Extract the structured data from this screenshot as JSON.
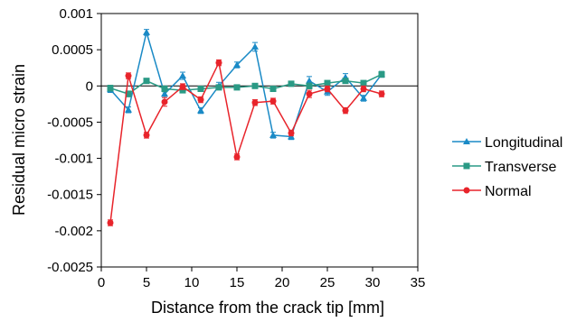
{
  "chart_data": {
    "type": "line",
    "title": "",
    "xlabel": "Distance from the crack tip [mm]",
    "ylabel": "Residual micro strain",
    "xlim": [
      0,
      35
    ],
    "ylim": [
      -0.0025,
      0.001
    ],
    "x_ticks": [
      0,
      5,
      10,
      15,
      20,
      25,
      30,
      35
    ],
    "x_tick_labels": [
      "0",
      "5",
      "10",
      "15",
      "20",
      "25",
      "30",
      "35"
    ],
    "y_ticks": [
      0.001,
      0.0005,
      0,
      -0.0005,
      -0.001,
      -0.0015,
      -0.002,
      -0.0025
    ],
    "y_tick_labels": [
      "0.001",
      "0.0005",
      "0",
      "-0.0005",
      "-0.001",
      "-0.0015",
      "-0.002",
      "-0.0025"
    ],
    "grid": false,
    "legend_position": "right",
    "x": [
      1,
      3,
      5,
      7,
      9,
      11,
      13,
      15,
      17,
      19,
      21,
      23,
      25,
      27,
      29,
      31
    ],
    "series": [
      {
        "name": "Longitudinal",
        "color": "#1a8ac6",
        "marker": "triangle",
        "values": [
          -5e-05,
          -0.00033,
          0.00074,
          -0.00011,
          0.00014,
          -0.00034,
          0.0,
          0.00029,
          0.00054,
          -0.00068,
          -0.0007,
          7e-05,
          -8e-05,
          0.00012,
          -0.00017,
          0.00016
        ],
        "errors": [
          4e-05,
          4e-05,
          4e-05,
          5e-05,
          5e-05,
          4e-05,
          5e-05,
          4e-05,
          6e-05,
          4e-05,
          4e-05,
          6e-05,
          5e-05,
          5e-05,
          4e-05,
          4e-05
        ]
      },
      {
        "name": "Transverse",
        "color": "#2a9a85",
        "marker": "square",
        "values": [
          -3e-05,
          -0.00011,
          7e-05,
          -4e-05,
          -6e-05,
          -4e-05,
          -2e-05,
          -2e-05,
          0.0,
          -4e-05,
          3e-05,
          0.0,
          4e-05,
          7e-05,
          4e-05,
          0.00016
        ],
        "errors": [
          4e-05,
          4e-05,
          3e-05,
          4e-05,
          3e-05,
          3e-05,
          3e-05,
          3e-05,
          3e-05,
          3e-05,
          3e-05,
          4e-05,
          3e-05,
          3e-05,
          3e-05,
          4e-05
        ]
      },
      {
        "name": "Normal",
        "color": "#e8242b",
        "marker": "circle",
        "values": [
          -0.00189,
          0.00014,
          -0.00068,
          -0.00022,
          -1e-05,
          -0.00019,
          0.00032,
          -0.00098,
          -0.00023,
          -0.00021,
          -0.00065,
          -0.00011,
          -4e-05,
          -0.00034,
          -4e-05,
          -0.00011
        ],
        "errors": [
          4e-05,
          4e-05,
          4e-05,
          6e-05,
          4e-05,
          4e-05,
          4e-05,
          4e-05,
          4e-05,
          4e-05,
          4e-05,
          5e-05,
          4e-05,
          4e-05,
          4e-05,
          4e-05
        ]
      }
    ]
  }
}
